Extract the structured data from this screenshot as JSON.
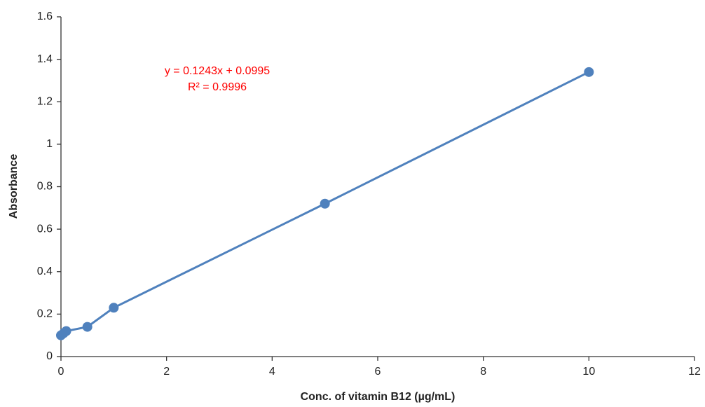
{
  "chart_data": {
    "type": "line",
    "xlabel": "Conc. of vitamin  B12 (µg/mL)",
    "ylabel": "Absorbance",
    "annotations": [
      "y = 0.1243x + 0.0995",
      "R² = 0.9996"
    ],
    "annotation_color": "#ff0000",
    "x": [
      0,
      0.05,
      0.1,
      0.5,
      1,
      5,
      10
    ],
    "series": [
      {
        "color": "#4f81bd",
        "values": [
          0.1,
          0.11,
          0.12,
          0.14,
          0.23,
          0.72,
          1.34
        ]
      }
    ],
    "xlim": [
      0,
      12
    ],
    "xticks": [
      0,
      2,
      4,
      6,
      8,
      10,
      12
    ],
    "ylim": [
      0,
      1.6
    ],
    "yticks": [
      0,
      0.2,
      0.4,
      0.6,
      0.8,
      1,
      1.2,
      1.4,
      1.6
    ],
    "grid": false
  }
}
